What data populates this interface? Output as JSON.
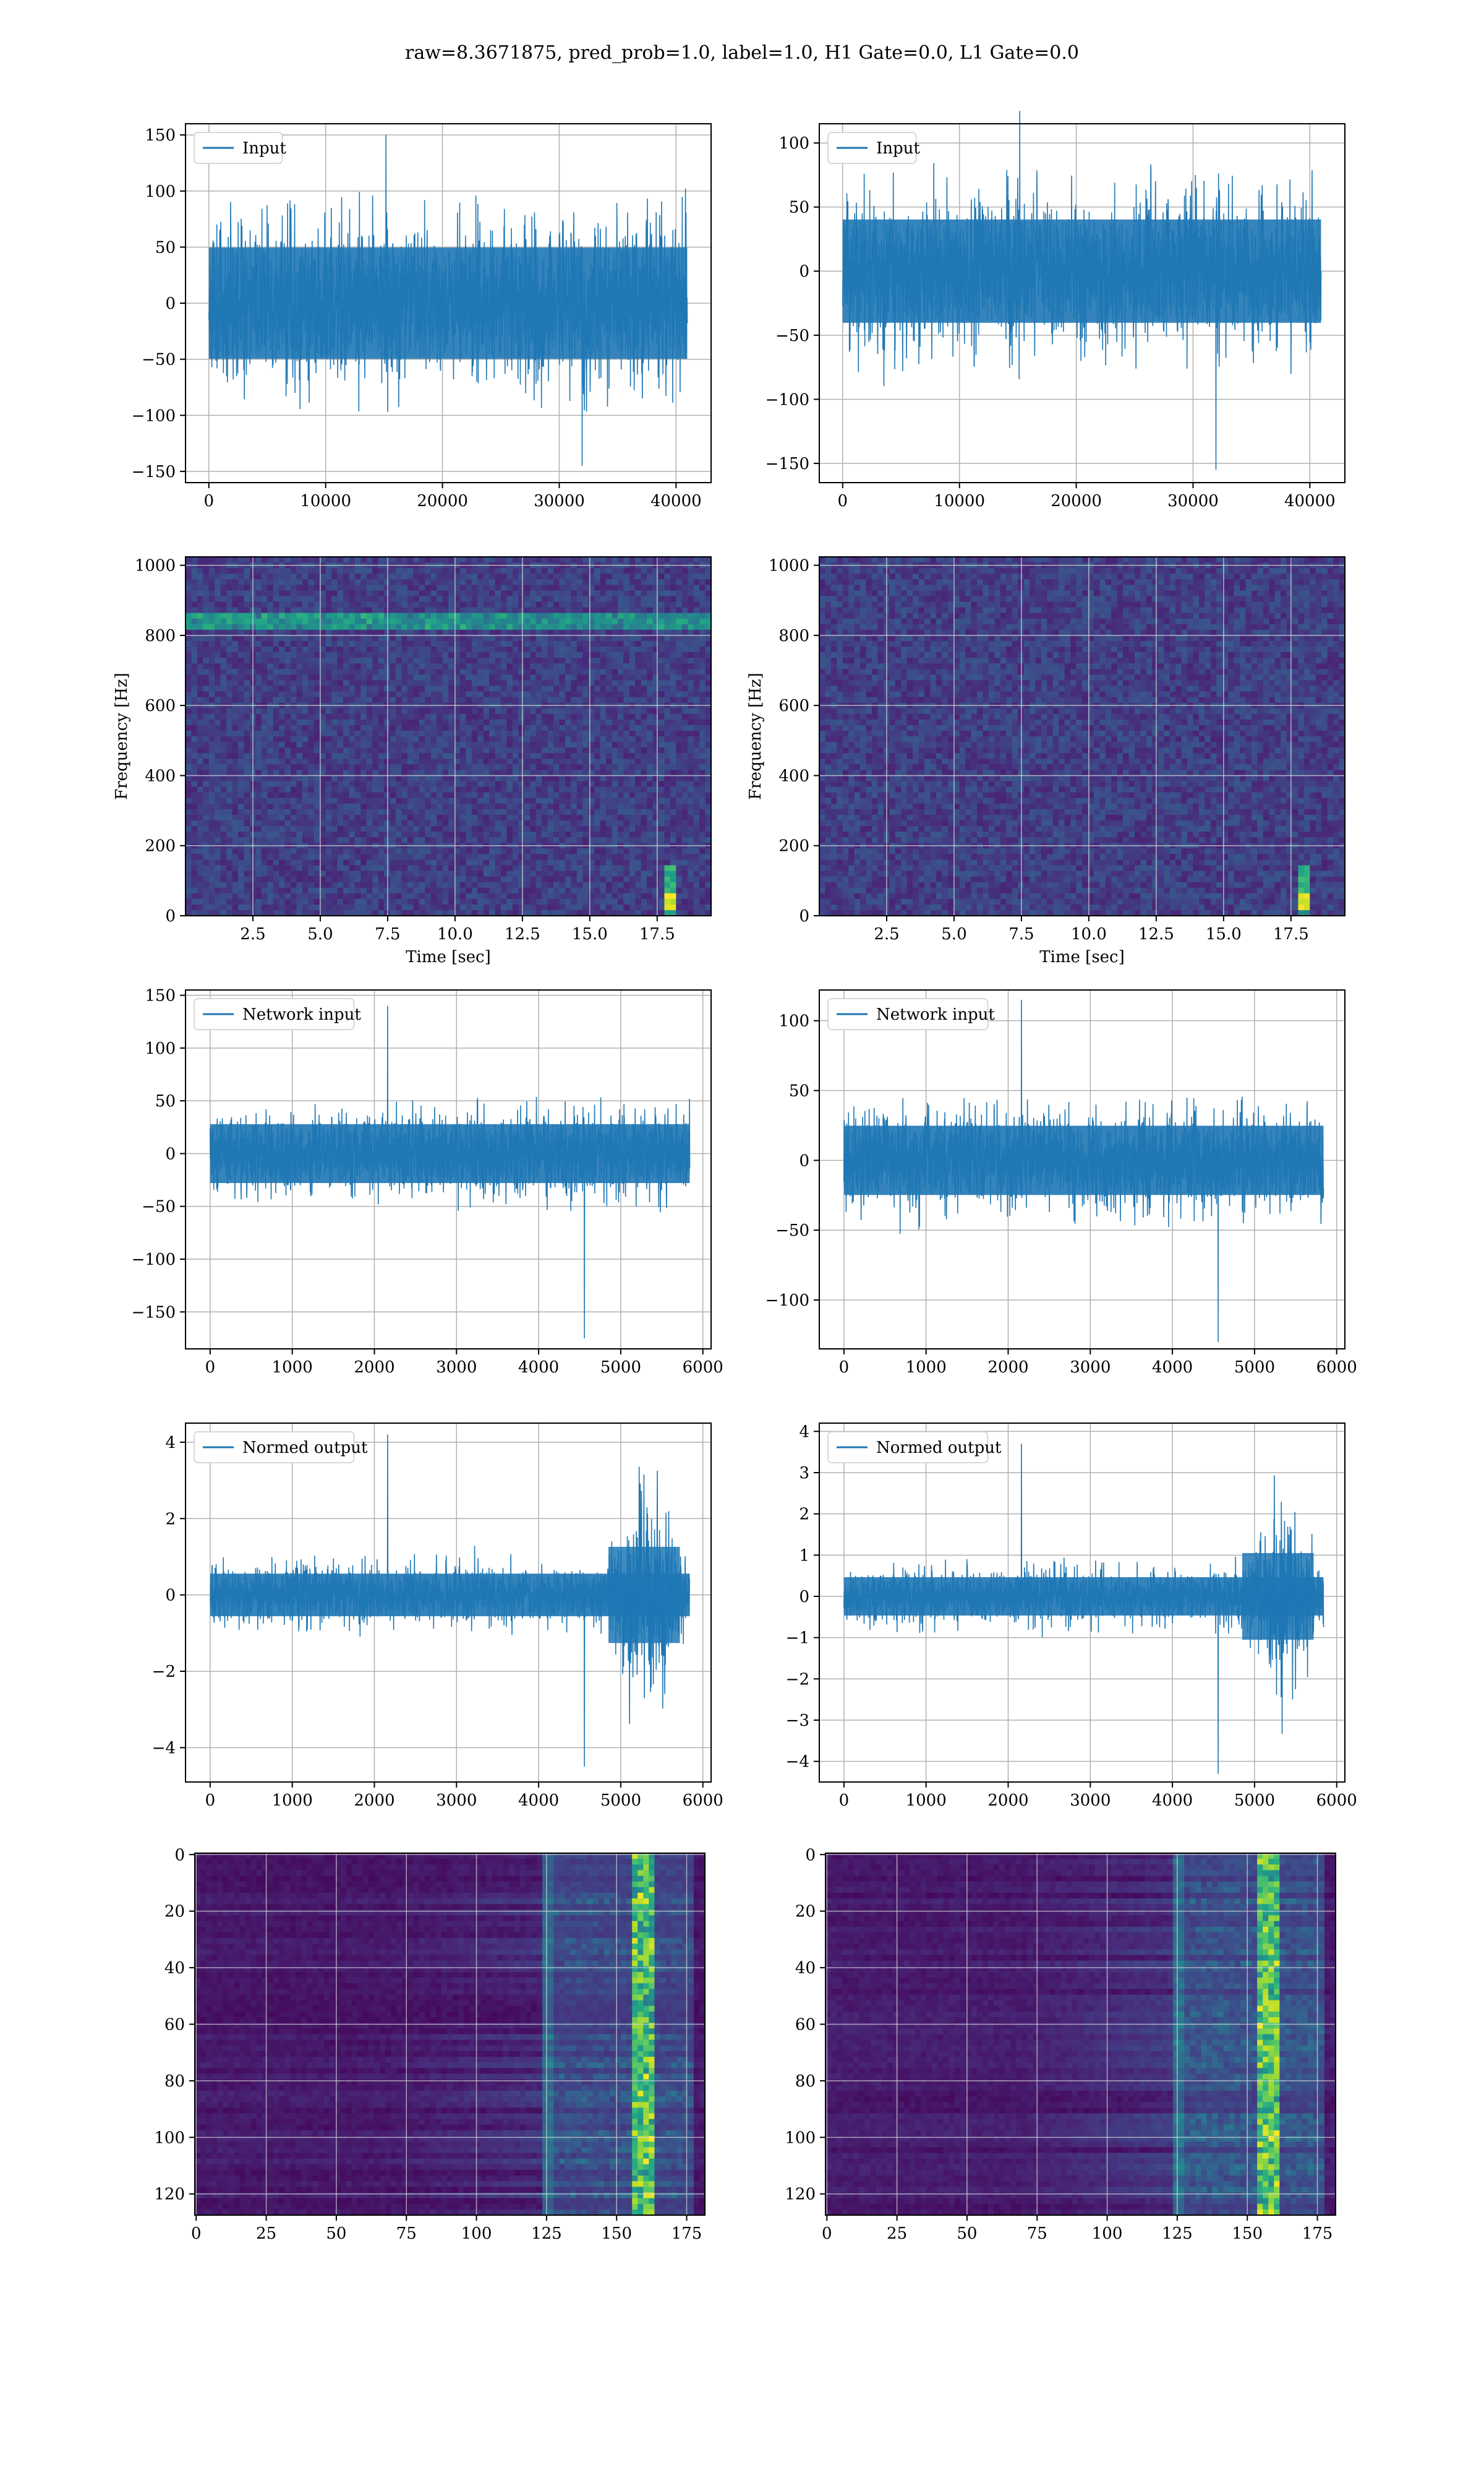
{
  "figure": {
    "title": "raw=8.3671875, pred_prob=1.0, label=1.0, H1 Gate=0.0, L1 Gate=0.0",
    "colors": {
      "series": "#1f77b4",
      "grid": "#b0b0b0",
      "frame": "#000000",
      "viridis_low": "#440154",
      "viridis_high": "#fde725"
    }
  },
  "chart_data": [
    {
      "id": "p1",
      "type": "line",
      "legend": [
        "Input"
      ],
      "legend_position": "upper-left",
      "xlim": [
        -2000,
        43000
      ],
      "ylim": [
        -160,
        160
      ],
      "xticks": [
        0,
        10000,
        20000,
        30000,
        40000
      ],
      "yticks": [
        -150,
        -100,
        -50,
        0,
        50,
        100,
        150
      ],
      "series": [
        {
          "name": "Input",
          "n_points": 40960,
          "core_amplitude": 80,
          "spike_extrema": [
            150,
            -145
          ]
        }
      ],
      "grid": true
    },
    {
      "id": "p2",
      "type": "line",
      "legend": [
        "Input"
      ],
      "legend_position": "upper-left",
      "xlim": [
        -2000,
        43000
      ],
      "ylim": [
        -165,
        115
      ],
      "xticks": [
        0,
        10000,
        20000,
        30000,
        40000
      ],
      "yticks": [
        -150,
        -100,
        -50,
        0,
        50,
        100
      ],
      "series": [
        {
          "name": "Input",
          "n_points": 40960,
          "core_amplitude": 65,
          "spike_extrema": [
            125,
            -155
          ]
        }
      ],
      "grid": true
    },
    {
      "id": "p3",
      "type": "heatmap",
      "colormap": "viridis",
      "xlim": [
        0,
        19.5
      ],
      "ylim": [
        0,
        1024
      ],
      "xticks": [
        2.5,
        5.0,
        7.5,
        10.0,
        12.5,
        15.0,
        17.5
      ],
      "yticks": [
        0,
        200,
        400,
        600,
        800,
        1000
      ],
      "xlabel": "Time [sec]",
      "ylabel": "Frequency [Hz]",
      "features": {
        "horizontal_line_hz": 840,
        "chirp_time_sec": 18.0,
        "chirp_freq_range_hz": [
          20,
          150
        ]
      },
      "grid": true
    },
    {
      "id": "p4",
      "type": "heatmap",
      "colormap": "viridis",
      "xlim": [
        0,
        19.5
      ],
      "ylim": [
        0,
        1024
      ],
      "xticks": [
        2.5,
        5.0,
        7.5,
        10.0,
        12.5,
        15.0,
        17.5
      ],
      "yticks": [
        0,
        200,
        400,
        600,
        800,
        1000
      ],
      "xlabel": "Time [sec]",
      "ylabel": "Frequency [Hz]",
      "features": {
        "chirp_time_sec": 18.0,
        "chirp_freq_range_hz": [
          20,
          150
        ]
      },
      "grid": true
    },
    {
      "id": "p5",
      "type": "line",
      "legend": [
        "Network input"
      ],
      "legend_position": "upper-left",
      "xlim": [
        -300,
        6100
      ],
      "ylim": [
        -185,
        155
      ],
      "xticks": [
        0,
        1000,
        2000,
        3000,
        4000,
        5000,
        6000
      ],
      "yticks": [
        -150,
        -100,
        -50,
        0,
        50,
        100,
        150
      ],
      "series": [
        {
          "name": "Network input",
          "n_points": 5840,
          "core_amplitude": 45,
          "spike_extrema": [
            140,
            -175
          ]
        }
      ],
      "grid": true
    },
    {
      "id": "p6",
      "type": "line",
      "legend": [
        "Network input"
      ],
      "legend_position": "upper-left",
      "xlim": [
        -300,
        6100
      ],
      "ylim": [
        -135,
        122
      ],
      "xticks": [
        0,
        1000,
        2000,
        3000,
        4000,
        5000,
        6000
      ],
      "yticks": [
        -100,
        -50,
        0,
        50,
        100
      ],
      "series": [
        {
          "name": "Network input",
          "n_points": 5840,
          "core_amplitude": 40,
          "spike_extrema": [
            115,
            -130
          ]
        }
      ],
      "grid": true
    },
    {
      "id": "p7",
      "type": "line",
      "legend": [
        "Normed output"
      ],
      "legend_position": "upper-left",
      "xlim": [
        -300,
        6100
      ],
      "ylim": [
        -4.9,
        4.5
      ],
      "xticks": [
        0,
        1000,
        2000,
        3000,
        4000,
        5000,
        6000
      ],
      "yticks": [
        -4,
        -2,
        0,
        2,
        4
      ],
      "series": [
        {
          "name": "Normed output",
          "n_points": 5840,
          "core_amplitude": 0.9,
          "burst_x_range": [
            4700,
            5800
          ],
          "spike_extrema": [
            4.2,
            -4.5
          ]
        }
      ],
      "grid": true
    },
    {
      "id": "p8",
      "type": "line",
      "legend": [
        "Normed output"
      ],
      "legend_position": "upper-left",
      "xlim": [
        -300,
        6100
      ],
      "ylim": [
        -4.5,
        4.2
      ],
      "xticks": [
        0,
        1000,
        2000,
        3000,
        4000,
        5000,
        6000
      ],
      "yticks": [
        -4,
        -3,
        -2,
        -1,
        0,
        1,
        2,
        3,
        4
      ],
      "series": [
        {
          "name": "Normed output",
          "n_points": 5840,
          "core_amplitude": 0.75,
          "burst_x_range": [
            4700,
            5800
          ],
          "spike_extrema": [
            3.7,
            -4.3
          ]
        }
      ],
      "grid": true
    },
    {
      "id": "p9",
      "type": "heatmap",
      "colormap": "viridis",
      "xlim": [
        -0.5,
        181.5
      ],
      "ylim": [
        127.5,
        -0.5
      ],
      "xticks": [
        0,
        25,
        50,
        75,
        100,
        125,
        150,
        175
      ],
      "yticks": [
        0,
        20,
        40,
        60,
        80,
        100,
        120
      ],
      "features": {
        "active_columns": [
          125,
          178
        ],
        "peak_column": 160
      },
      "grid": true
    },
    {
      "id": "p10",
      "type": "heatmap",
      "colormap": "viridis",
      "xlim": [
        -0.5,
        181.5
      ],
      "ylim": [
        127.5,
        -0.5
      ],
      "xticks": [
        0,
        25,
        50,
        75,
        100,
        125,
        150,
        175
      ],
      "yticks": [
        0,
        20,
        40,
        60,
        80,
        100,
        120
      ],
      "features": {
        "active_columns": [
          125,
          178
        ],
        "peak_column": 158
      },
      "grid": true
    }
  ]
}
